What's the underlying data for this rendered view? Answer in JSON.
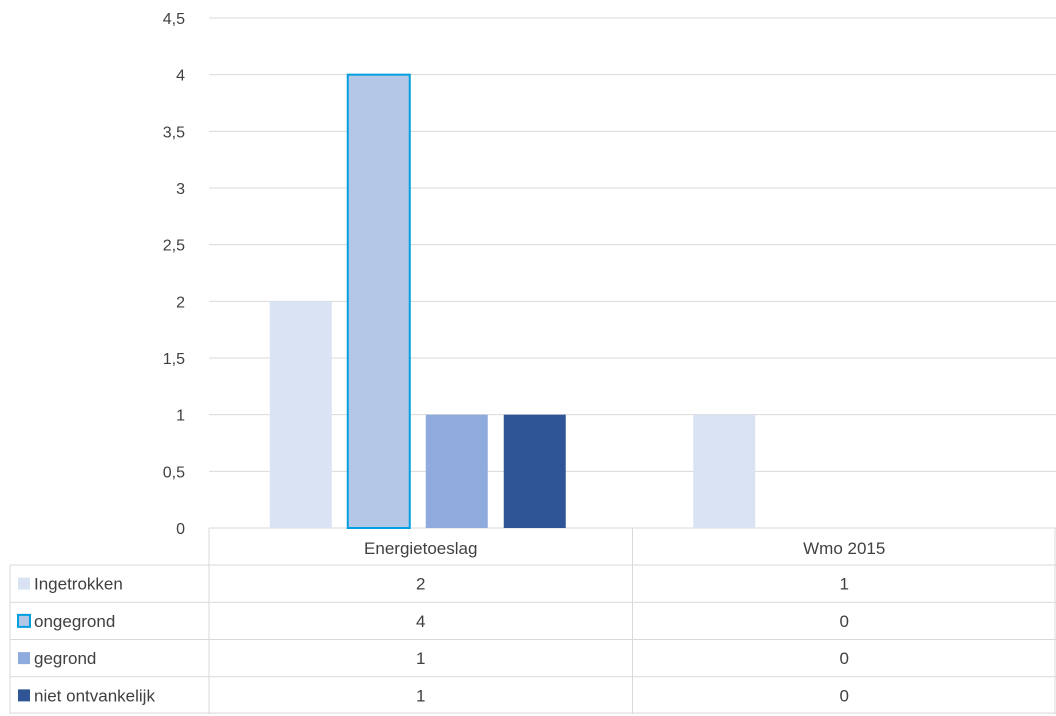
{
  "chart_data": {
    "type": "bar",
    "categories": [
      "Energietoeslag",
      "Wmo 2015"
    ],
    "series": [
      {
        "name": "Ingetrokken",
        "values": [
          2,
          1
        ],
        "color": "#dae3f3"
      },
      {
        "name": "ongegrond",
        "values": [
          4,
          0
        ],
        "color": "#b4c7e7",
        "outline": "#00a0e0"
      },
      {
        "name": "gegrond",
        "values": [
          1,
          0
        ],
        "color": "#8faadc"
      },
      {
        "name": "niet ontvankelijk",
        "values": [
          1,
          0
        ],
        "color": "#2f5597"
      }
    ],
    "ylim": [
      0,
      4.5
    ],
    "yticks": [
      "0",
      "0,5",
      "1",
      "1,5",
      "2",
      "2,5",
      "3",
      "3,5",
      "4",
      "4,5"
    ],
    "grid": true,
    "data_table": true,
    "title": "",
    "xlabel": "",
    "ylabel": ""
  }
}
